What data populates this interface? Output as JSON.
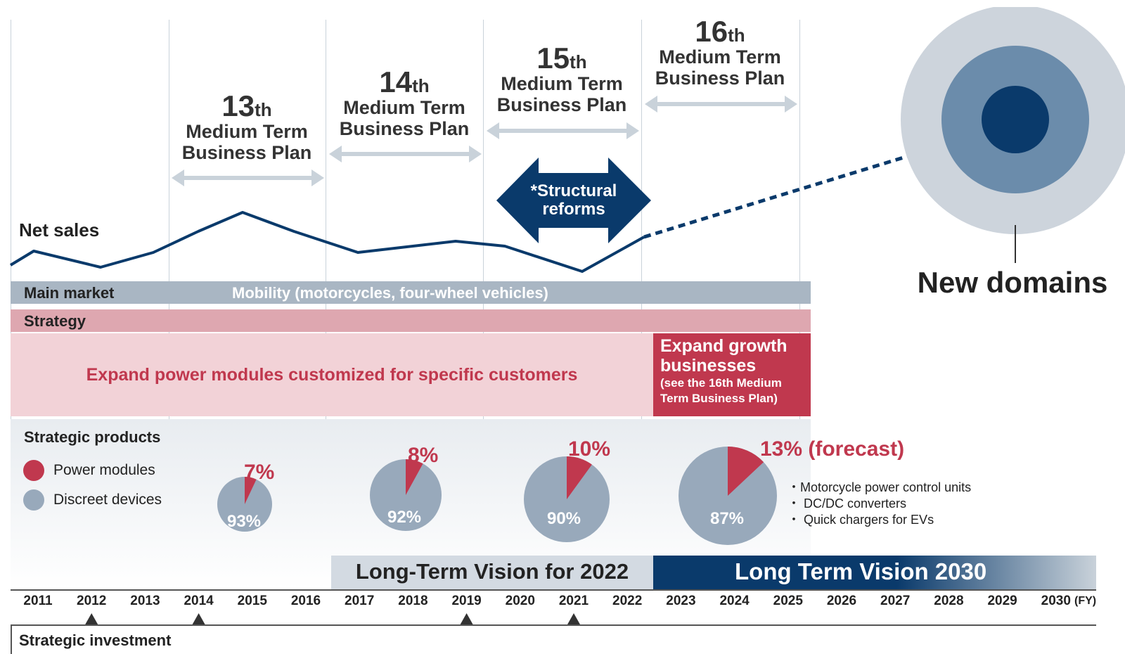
{
  "plans": [
    {
      "num": "13",
      "suffix": "th",
      "line1": "Medium Term",
      "line2": "Business Plan"
    },
    {
      "num": "14",
      "suffix": "th",
      "line1": "Medium Term",
      "line2": "Business Plan"
    },
    {
      "num": "15",
      "suffix": "th",
      "line1": "Medium Term",
      "line2": "Business Plan"
    },
    {
      "num": "16",
      "suffix": "th",
      "line1": "Medium Term",
      "line2": "Business Plan"
    }
  ],
  "structural_reforms": {
    "line1": "*Structural",
    "line2": "reforms"
  },
  "net_sales_label": "Net sales",
  "new_domains_label": "New domains",
  "main_market": {
    "label": "Main market",
    "value": "Mobility (motorcycles, four-wheel vehicles)"
  },
  "strategy": {
    "label": "Strategy",
    "left_text": "Expand power modules customized for specific customers",
    "right_title_1": "Expand growth",
    "right_title_2": "businesses",
    "right_note_1": "(see the 16th Medium",
    "right_note_2": "Term Business Plan)"
  },
  "strategic_products": {
    "title": "Strategic products",
    "legend": [
      {
        "label": "Power modules",
        "color": "#c0384e"
      },
      {
        "label": "Discreet devices",
        "color": "#98a9bb"
      }
    ],
    "pies": [
      {
        "power_pct": 7,
        "power_label": "7%",
        "discrete_label": "93%"
      },
      {
        "power_pct": 8,
        "power_label": "8%",
        "discrete_label": "92%"
      },
      {
        "power_pct": 10,
        "power_label": "10%",
        "discrete_label": "90%"
      },
      {
        "power_pct": 13,
        "power_label": "13% (forecast)",
        "discrete_label": "87%"
      }
    ],
    "bullets": [
      "・Motorcycle power control units",
      "・ DC/DC converters",
      "・ Quick chargers for EVs"
    ]
  },
  "visions": {
    "v2022": "Long-Term Vision for 2022",
    "v2030": "Long Term Vision 2030"
  },
  "years": [
    "2011",
    "2012",
    "2013",
    "2014",
    "2015",
    "2016",
    "2017",
    "2018",
    "2019",
    "2020",
    "2021",
    "2022",
    "2023",
    "2024",
    "2025",
    "2026",
    "2027",
    "2028",
    "2029",
    "2030"
  ],
  "fy_label": "(FY)",
  "strategic_investment": {
    "label": "Strategic investment",
    "marked_years": [
      "2012",
      "2014",
      "2019",
      "2021"
    ]
  },
  "colors": {
    "navy": "#0a3a6b",
    "red": "#c0384e",
    "grey_bar": "#a9b6c3",
    "pink_band": "#dea7b0",
    "pink_light": "#f2d2d7",
    "pie_grey": "#98a9bb"
  }
}
